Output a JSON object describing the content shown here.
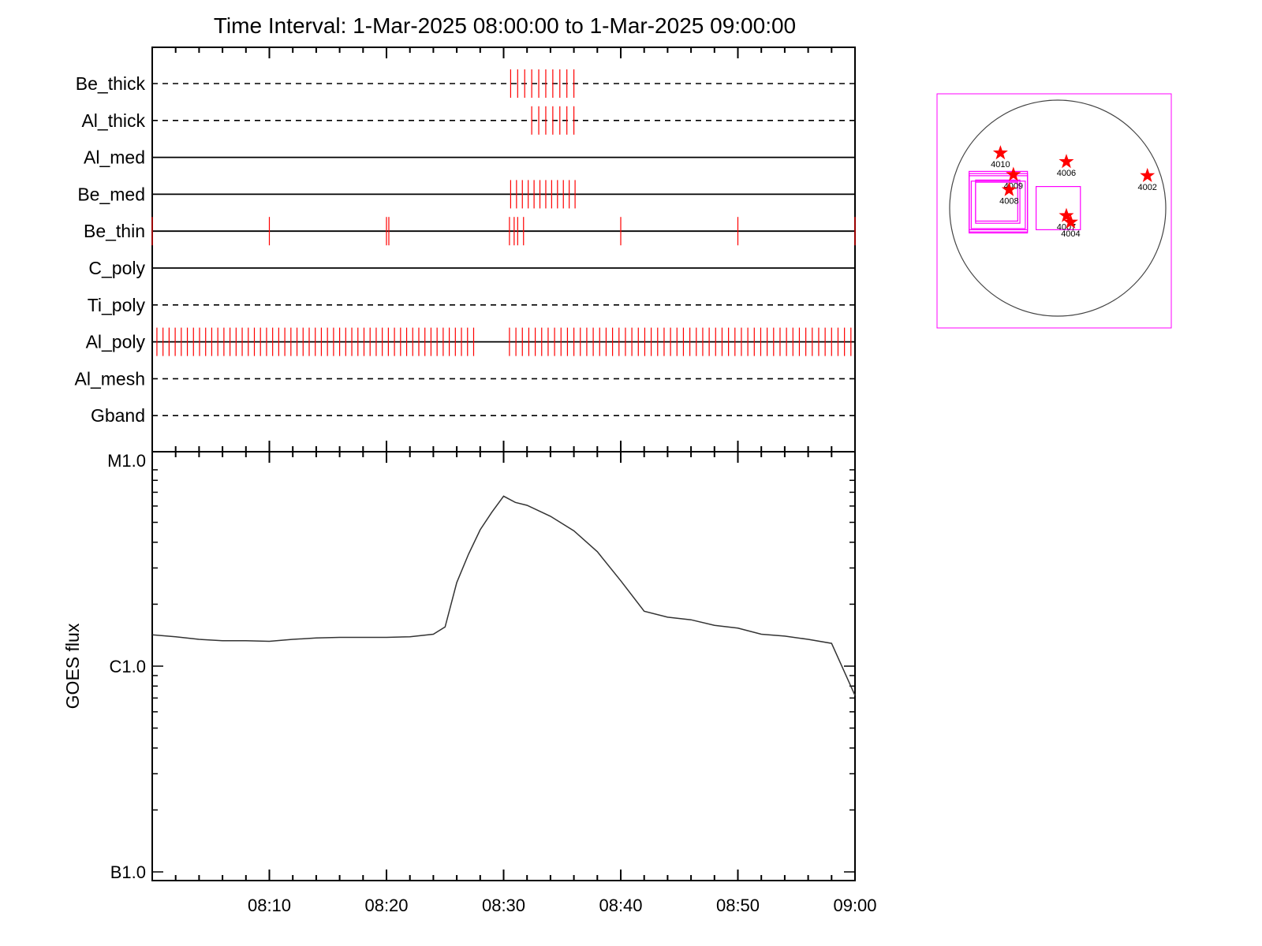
{
  "title": "Time Interval:  1-Mar-2025 08:00:00 to  1-Mar-2025 09:00:00",
  "colors": {
    "exposure": "#ff0000",
    "fov": "#ff00ff",
    "axes": "#000000"
  },
  "chart_data": [
    {
      "type": "event-timeline",
      "x_range_minutes": [
        0,
        60
      ],
      "filters": [
        {
          "name": "Be_thick",
          "line": "dashed",
          "exposures": [
            0.6,
            1.2,
            1.8,
            2.4,
            3.0,
            3.6,
            4.2,
            4.8,
            5.4,
            6.0
          ]
        },
        {
          "name": "Al_thick",
          "line": "dashed",
          "exposures": [
            2.4,
            3.0,
            3.6,
            4.2,
            4.8,
            5.4,
            6.0
          ]
        },
        {
          "name": "Al_med",
          "line": "solid",
          "exposures": []
        },
        {
          "name": "Be_med",
          "line": "solid",
          "exposures": [
            0.6,
            1.1,
            1.6,
            2.1,
            2.6,
            3.1,
            3.6,
            4.1,
            4.6,
            5.1,
            5.6,
            6.1
          ]
        },
        {
          "name": "Be_thin",
          "line": "solid",
          "exposures": [
            -30.0,
            -20.0,
            -10.0,
            -9.8,
            0.5,
            0.9,
            1.2,
            1.7,
            10.0,
            20.0,
            30.0
          ]
        },
        {
          "name": "C_poly",
          "line": "solid",
          "exposures": []
        },
        {
          "name": "Ti_poly",
          "line": "dashed",
          "exposures": []
        },
        {
          "name": "Al_poly",
          "line": "solid",
          "exposures": []
        },
        {
          "name": "Al_mesh",
          "line": "dashed",
          "exposures": []
        },
        {
          "name": "Gband",
          "line": "dashed",
          "exposures": []
        }
      ]
    },
    {
      "type": "line",
      "ylabel": "GOES flux",
      "yscale": "log",
      "ylim": [
        1e-07,
        1e-05
      ],
      "y_tick_labels": [
        "M1.0",
        "C1.0",
        "B1.0"
      ],
      "x_tick_labels": [
        "08:10",
        "08:20",
        "08:30",
        "08:40",
        "08:50",
        "09:00"
      ],
      "x_minutes": [
        0,
        2,
        4,
        6,
        8,
        10,
        12,
        14,
        16,
        18,
        20,
        22,
        24,
        25,
        26,
        27,
        28,
        29,
        30,
        31,
        32,
        34,
        36,
        38,
        40,
        42,
        44,
        46,
        48,
        50,
        52,
        54,
        56,
        58,
        60
      ],
      "flux": [
        1.42e-06,
        1.39e-06,
        1.35e-06,
        1.33e-06,
        1.33e-06,
        1.32e-06,
        1.35e-06,
        1.37e-06,
        1.38e-06,
        1.38e-06,
        1.38e-06,
        1.39e-06,
        1.43e-06,
        1.55e-06,
        2.55e-06,
        3.5e-06,
        4.6e-06,
        5.6e-06,
        6.7e-06,
        6.25e-06,
        6.05e-06,
        5.35e-06,
        4.55e-06,
        3.6e-06,
        2.6e-06,
        1.85e-06,
        1.73e-06,
        1.68e-06,
        1.58e-06,
        1.53e-06,
        1.43e-06,
        1.4e-06,
        1.35e-06,
        1.29e-06,
        7.2e-07
      ]
    },
    {
      "type": "solar-disk-map",
      "active_regions": [
        {
          "label": "4010",
          "x": -0.53,
          "y": 0.51
        },
        {
          "label": "4009",
          "x": -0.41,
          "y": 0.31
        },
        {
          "label": "4008",
          "x": -0.45,
          "y": 0.17
        },
        {
          "label": "4006",
          "x": 0.08,
          "y": 0.43
        },
        {
          "label": "4002",
          "x": 0.83,
          "y": 0.3
        },
        {
          "label": "4007",
          "x": 0.08,
          "y": -0.07
        },
        {
          "label": "4004",
          "x": 0.12,
          "y": -0.13
        }
      ],
      "fov_boxes": [
        {
          "x0": -0.82,
          "x1": -0.28,
          "y0": -0.23,
          "y1": 0.34
        },
        {
          "x0": -0.82,
          "x1": -0.28,
          "y0": -0.22,
          "y1": 0.32
        },
        {
          "x0": -0.82,
          "x1": -0.28,
          "y0": -0.2,
          "y1": 0.3
        },
        {
          "x0": -0.8,
          "x1": -0.3,
          "y0": -0.19,
          "y1": 0.25
        },
        {
          "x0": -0.76,
          "x1": -0.35,
          "y0": -0.14,
          "y1": 0.26
        },
        {
          "x0": -0.76,
          "x1": -0.37,
          "y0": -0.12,
          "y1": 0.24
        },
        {
          "x0": -0.2,
          "x1": 0.21,
          "y0": -0.2,
          "y1": 0.2
        }
      ]
    }
  ]
}
